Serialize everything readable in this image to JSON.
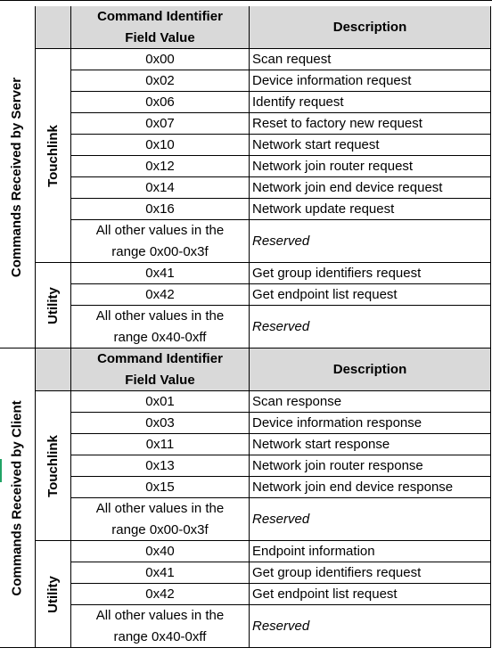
{
  "columns": {
    "command_identifier_line1": "Command Identifier",
    "command_identifier_line2": "Field Value",
    "description": "Description"
  },
  "server": {
    "label": "Commands Received by Server",
    "touchlink": {
      "label": "Touchlink",
      "rows": [
        {
          "code": "0x00",
          "desc": "Scan request"
        },
        {
          "code": "0x02",
          "desc": "Device information request"
        },
        {
          "code": "0x06",
          "desc": "Identify request"
        },
        {
          "code": "0x07",
          "desc": "Reset to factory new request"
        },
        {
          "code": "0x10",
          "desc": "Network start request"
        },
        {
          "code": "0x12",
          "desc": "Network join router request"
        },
        {
          "code": "0x14",
          "desc": "Network join end device request"
        },
        {
          "code": "0x16",
          "desc": "Network update request"
        }
      ],
      "other_line1": "All other values in the",
      "other_line2": "range 0x00-0x3f",
      "other_desc": "Reserved"
    },
    "utility": {
      "label": "Utility",
      "rows": [
        {
          "code": "0x41",
          "desc": "Get group identifiers request"
        },
        {
          "code": "0x42",
          "desc": "Get endpoint list request"
        }
      ],
      "other_line1": "All other values in the",
      "other_line2": "range 0x40-0xff",
      "other_desc": "Reserved"
    }
  },
  "client": {
    "label": "Commands Received by Client",
    "touchlink": {
      "label": "Touchlink",
      "rows": [
        {
          "code": "0x01",
          "desc": "Scan response"
        },
        {
          "code": "0x03",
          "desc": "Device information response"
        },
        {
          "code": "0x11",
          "desc": "Network start response"
        },
        {
          "code": "0x13",
          "desc": "Network join router response"
        },
        {
          "code": "0x15",
          "desc": "Network join end device response"
        }
      ],
      "other_line1": "All other values in the",
      "other_line2": "range 0x00-0x3f",
      "other_desc": "Reserved"
    },
    "utility": {
      "label": "Utility",
      "rows": [
        {
          "code": "0x40",
          "desc": "Endpoint information"
        },
        {
          "code": "0x41",
          "desc": "Get group identifiers request"
        },
        {
          "code": "0x42",
          "desc": "Get endpoint list request"
        }
      ],
      "other_line1": "All other values in the",
      "other_line2": "range 0x40-0xff",
      "other_desc": "Reserved"
    }
  }
}
